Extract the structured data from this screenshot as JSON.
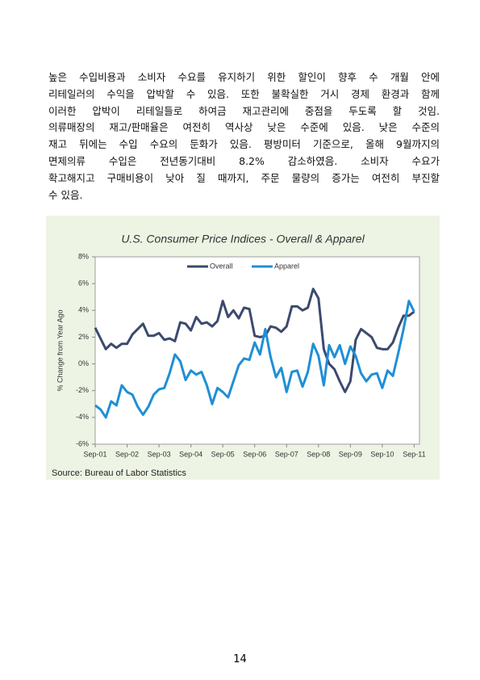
{
  "paragraph": {
    "lines": [
      "높은 수입비용과 소비자 수요를 유지하기 위한 할인이 향후 수 개월 안에",
      "리테일러의 수익을 압박할 수 있음. 또한 불확실한 거시 경제 환경과 함께",
      "이러한 압박이 리테일들로 하여금 재고관리에 중점을 두도록 할 것임.",
      "의류매장의 재고/판매율은 여전히 역사상 낮은 수준에 있음. 낮은 수준의",
      "재고 뒤에는 수입 수요의 둔화가 있음. 평방미터 기준으로, 올해 9월까지의",
      "면제의류 수입은 전년동기대비 8.2% 감소하였음. 소비자 수요가",
      "확고해지고 구매비용이 낮아 질 때까지, 주문 물량의 증가는 여전히 부진할",
      "수 있음."
    ]
  },
  "chart_data": {
    "type": "line",
    "title": "U.S. Consumer Price Indices - Overall & Apparel",
    "y_label": "% Change from Year Ago",
    "x": [
      0,
      2,
      4,
      6,
      8,
      10,
      12,
      14,
      16,
      18,
      20,
      22,
      24,
      26,
      28,
      30,
      32,
      34,
      36,
      38,
      40,
      42,
      44,
      46,
      48,
      50,
      52,
      54,
      56,
      58,
      60,
      62,
      64,
      66,
      68,
      70,
      72,
      74,
      76,
      78,
      80,
      82,
      84,
      86,
      88,
      90,
      92,
      94,
      96,
      98,
      100,
      102,
      104,
      106,
      108,
      110,
      112,
      114,
      116,
      118,
      120
    ],
    "series": [
      {
        "name": "Overall",
        "color": "#3b4a6e",
        "values": [
          2.7,
          1.9,
          1.1,
          1.5,
          1.2,
          1.5,
          1.5,
          2.2,
          2.6,
          3.0,
          2.1,
          2.1,
          2.3,
          1.8,
          1.9,
          1.7,
          3.1,
          3.0,
          2.5,
          3.5,
          3.0,
          3.1,
          2.8,
          3.2,
          4.7,
          3.5,
          4.0,
          3.4,
          4.2,
          4.1,
          2.1,
          2.0,
          2.1,
          2.8,
          2.7,
          2.4,
          2.8,
          4.3,
          4.3,
          4.0,
          4.2,
          5.6,
          4.9,
          1.1,
          0.0,
          -0.4,
          -1.3,
          -2.1,
          -1.3,
          1.8,
          2.6,
          2.3,
          2.0,
          1.2,
          1.1,
          1.1,
          1.6,
          2.7,
          3.6,
          3.6,
          3.9
        ]
      },
      {
        "name": "Apparel",
        "color": "#1f8fd6",
        "values": [
          -3.1,
          -3.4,
          -4.0,
          -2.8,
          -3.1,
          -1.6,
          -2.1,
          -2.3,
          -3.2,
          -3.8,
          -3.2,
          -2.3,
          -1.9,
          -1.8,
          -0.7,
          0.7,
          0.2,
          -1.2,
          -0.5,
          -0.8,
          -0.6,
          -1.6,
          -3.0,
          -1.8,
          -2.1,
          -2.5,
          -1.3,
          -0.1,
          0.4,
          0.3,
          1.6,
          0.7,
          2.6,
          0.5,
          -1.0,
          -0.3,
          -2.1,
          -0.6,
          -0.5,
          -1.7,
          -0.6,
          1.5,
          0.6,
          -1.6,
          1.4,
          0.5,
          1.4,
          0.0,
          1.3,
          0.6,
          -0.7,
          -1.3,
          -0.8,
          -0.7,
          -1.8,
          -0.5,
          -0.9,
          0.8,
          2.6,
          4.7,
          3.9
        ]
      }
    ],
    "xlim": [
      0,
      122
    ],
    "xticks": [
      {
        "value": 0,
        "label": "Sep-01"
      },
      {
        "value": 12,
        "label": "Sep-02"
      },
      {
        "value": 24,
        "label": "Sep-03"
      },
      {
        "value": 36,
        "label": "Sep-04"
      },
      {
        "value": 48,
        "label": "Sep-05"
      },
      {
        "value": 60,
        "label": "Sep-06"
      },
      {
        "value": 72,
        "label": "Sep-07"
      },
      {
        "value": 84,
        "label": "Sep-08"
      },
      {
        "value": 96,
        "label": "Sep-09"
      },
      {
        "value": 108,
        "label": "Sep-10"
      },
      {
        "value": 120,
        "label": "Sep-11"
      }
    ],
    "ylim": [
      -6,
      8
    ],
    "yticks": [
      {
        "value": -6,
        "label": "-6%"
      },
      {
        "value": -4,
        "label": "-4%"
      },
      {
        "value": -2,
        "label": "-2%"
      },
      {
        "value": 0,
        "label": "0%"
      },
      {
        "value": 2,
        "label": "2%"
      },
      {
        "value": 4,
        "label": "4%"
      },
      {
        "value": 6,
        "label": "6%"
      },
      {
        "value": 8,
        "label": "8%"
      }
    ],
    "grid": false,
    "source": "Source: Bureau of Labor Statistics"
  },
  "page_number": "14"
}
